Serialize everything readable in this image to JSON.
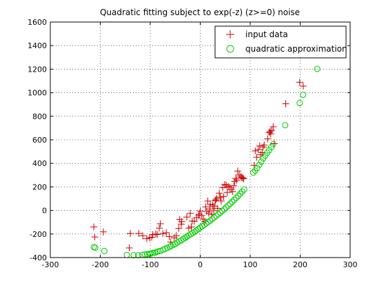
{
  "figure": {
    "background": "#ffffff"
  },
  "chart_data": {
    "type": "scatter",
    "title": "Quadratic fitting subject to exp(-z) (z>=0) noise",
    "xlabel": "",
    "ylabel": "",
    "xlim": [
      -300,
      300
    ],
    "ylim": [
      -400,
      1600
    ],
    "xticks": [
      -300,
      -200,
      -100,
      0,
      100,
      200,
      300
    ],
    "yticks": [
      -400,
      -200,
      0,
      200,
      400,
      600,
      800,
      1000,
      1200,
      1400,
      1600
    ],
    "grid": true,
    "legend_position": "top-right",
    "series": [
      {
        "name": "input data",
        "marker": "plus",
        "color": "#cc0000",
        "points": [
          [
            -213,
            -140
          ],
          [
            -211,
            -225
          ],
          [
            -194,
            -182
          ],
          [
            -142,
            -318
          ],
          [
            -140,
            -195
          ],
          [
            -123,
            -195
          ],
          [
            -115,
            -215
          ],
          [
            -107,
            -240
          ],
          [
            -101,
            -232
          ],
          [
            -97,
            -228
          ],
          [
            -95,
            -205
          ],
          [
            -89,
            -200
          ],
          [
            -86,
            -205
          ],
          [
            -82,
            -150
          ],
          [
            -80,
            -113
          ],
          [
            -75,
            -197
          ],
          [
            -68,
            -189
          ],
          [
            -62,
            -222
          ],
          [
            -59,
            -268
          ],
          [
            -52,
            -232
          ],
          [
            -48,
            -215
          ],
          [
            -43,
            -152
          ],
          [
            -41,
            -75
          ],
          [
            -38,
            -116
          ],
          [
            -37,
            -94
          ],
          [
            -27,
            -56
          ],
          [
            -23,
            -150
          ],
          [
            -20,
            -25
          ],
          [
            -18,
            -140
          ],
          [
            -16,
            -90
          ],
          [
            -12,
            -92
          ],
          [
            -7,
            -61
          ],
          [
            -3,
            -43
          ],
          [
            -2,
            -32
          ],
          [
            0,
            -5
          ],
          [
            3,
            -43
          ],
          [
            6,
            -74
          ],
          [
            9,
            -92
          ],
          [
            11,
            30
          ],
          [
            13,
            -9
          ],
          [
            15,
            80
          ],
          [
            17,
            -23
          ],
          [
            19,
            13
          ],
          [
            20,
            52
          ],
          [
            23,
            -35
          ],
          [
            25,
            46
          ],
          [
            27,
            -2
          ],
          [
            28,
            35
          ],
          [
            30,
            83
          ],
          [
            31,
            91
          ],
          [
            33,
            102
          ],
          [
            35,
            18
          ],
          [
            38,
            147
          ],
          [
            40,
            113
          ],
          [
            42,
            80
          ],
          [
            45,
            193
          ],
          [
            47,
            118
          ],
          [
            49,
            221
          ],
          [
            52,
            215
          ],
          [
            54,
            154
          ],
          [
            56,
            204
          ],
          [
            59,
            196
          ],
          [
            62,
            178
          ],
          [
            65,
            160
          ],
          [
            67,
            210
          ],
          [
            69,
            246
          ],
          [
            71,
            272
          ],
          [
            73,
            258
          ],
          [
            75,
            335
          ],
          [
            78,
            302
          ],
          [
            81,
            290
          ],
          [
            83,
            280
          ],
          [
            85,
            275
          ],
          [
            87,
            269
          ],
          [
            108,
            383
          ],
          [
            110,
            506
          ],
          [
            113,
            452
          ],
          [
            116,
            516
          ],
          [
            119,
            548
          ],
          [
            121,
            473
          ],
          [
            124,
            492
          ],
          [
            126,
            538
          ],
          [
            128,
            555
          ],
          [
            135,
            608
          ],
          [
            138,
            662
          ],
          [
            140,
            670
          ],
          [
            141,
            650
          ],
          [
            143,
            680
          ],
          [
            146,
            711
          ],
          [
            148,
            568
          ],
          [
            171,
            906
          ],
          [
            199,
            1089
          ],
          [
            206,
            1056
          ]
        ]
      },
      {
        "name": "quadratic approximation",
        "marker": "circle",
        "color": "#00cc00",
        "points": [
          [
            -213,
            -311
          ],
          [
            -210,
            -316
          ],
          [
            -192,
            -345
          ],
          [
            -147,
            -378
          ],
          [
            -133,
            -380
          ],
          [
            -124,
            -380
          ],
          [
            -116,
            -377
          ],
          [
            -111,
            -374
          ],
          [
            -106,
            -370
          ],
          [
            -102,
            -369
          ],
          [
            -99,
            -366
          ],
          [
            -95,
            -360
          ],
          [
            -91,
            -358
          ],
          [
            -87,
            -352
          ],
          [
            -84,
            -348
          ],
          [
            -80,
            -343
          ],
          [
            -74,
            -333
          ],
          [
            -70,
            -325
          ],
          [
            -66,
            -318
          ],
          [
            -61,
            -308
          ],
          [
            -58,
            -300
          ],
          [
            -54,
            -292
          ],
          [
            -50,
            -284
          ],
          [
            -46,
            -272
          ],
          [
            -42,
            -262
          ],
          [
            -38,
            -254
          ],
          [
            -34,
            -242
          ],
          [
            -30,
            -232
          ],
          [
            -27,
            -222
          ],
          [
            -23,
            -212
          ],
          [
            -19,
            -202
          ],
          [
            -15,
            -190
          ],
          [
            -11,
            -180
          ],
          [
            -8,
            -170
          ],
          [
            -4,
            -158
          ],
          [
            0,
            -146
          ],
          [
            4,
            -134
          ],
          [
            8,
            -122
          ],
          [
            12,
            -110
          ],
          [
            16,
            -98
          ],
          [
            20,
            -86
          ],
          [
            24,
            -72
          ],
          [
            28,
            -60
          ],
          [
            32,
            -46
          ],
          [
            36,
            -32
          ],
          [
            40,
            -18
          ],
          [
            44,
            -4
          ],
          [
            48,
            10
          ],
          [
            52,
            26
          ],
          [
            56,
            42
          ],
          [
            60,
            58
          ],
          [
            64,
            74
          ],
          [
            68,
            90
          ],
          [
            72,
            108
          ],
          [
            76,
            124
          ],
          [
            80,
            142
          ],
          [
            84,
            160
          ],
          [
            88,
            178
          ],
          [
            106,
            322
          ],
          [
            110,
            338
          ],
          [
            114,
            360
          ],
          [
            118,
            388
          ],
          [
            122,
            414
          ],
          [
            126,
            442
          ],
          [
            130,
            466
          ],
          [
            134,
            490
          ],
          [
            138,
            512
          ],
          [
            142,
            538
          ],
          [
            146,
            562
          ],
          [
            170,
            724
          ],
          [
            199,
            912
          ],
          [
            206,
            982
          ],
          [
            234,
            1202
          ]
        ]
      }
    ]
  }
}
